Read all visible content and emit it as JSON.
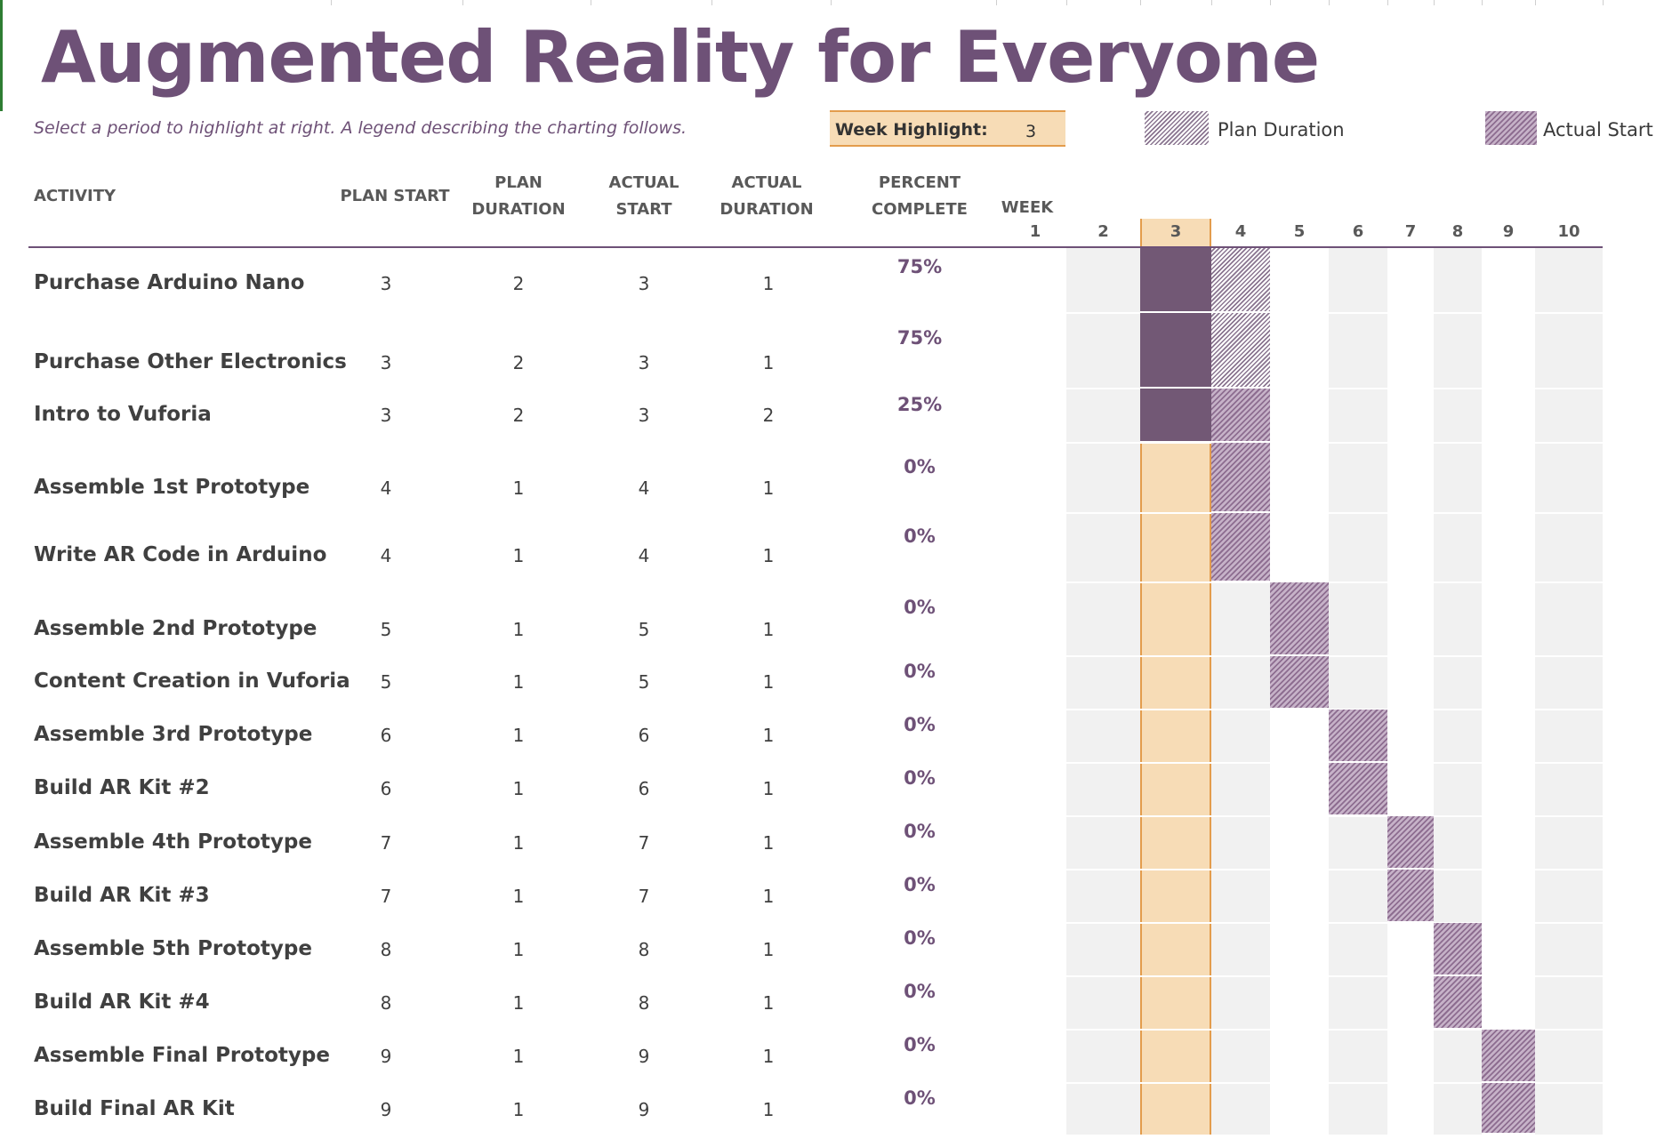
{
  "title": "Augmented Reality for Everyone",
  "subtitle": "Select a period to highlight at right.  A legend describing the charting follows.",
  "week_highlight": {
    "label": "Week Highlight:",
    "value": "3"
  },
  "legend": {
    "plan_label": "Plan Duration",
    "actual_label": "Actual Start"
  },
  "columns": {
    "activity": "ACTIVITY",
    "plan_start": "PLAN START",
    "plan_duration_1": "PLAN",
    "plan_duration_2": "DURATION",
    "actual_start_1": "ACTUAL",
    "actual_start_2": "START",
    "actual_duration_1": "ACTUAL",
    "actual_duration_2": "DURATION",
    "percent_1": "PERCENT",
    "percent_2": "COMPLETE",
    "week": "WEEK"
  },
  "weeks": [
    "1",
    "2",
    "3",
    "4",
    "5",
    "6",
    "7",
    "8",
    "9",
    "10"
  ],
  "highlighted_week": 3,
  "colors": {
    "accent": "#6e5177",
    "highlight": "#f7dcb6",
    "highlight_border": "#e39c4c",
    "actual_complete": "#725875",
    "shade": "#f1f1f1"
  },
  "tasks": [
    {
      "name": "Purchase Arduino Nano",
      "plan_start": "3",
      "plan_duration": "2",
      "actual_start": "3",
      "actual_duration": "1",
      "percent": "75%"
    },
    {
      "name": "Purchase Other Electronics",
      "plan_start": "3",
      "plan_duration": "2",
      "actual_start": "3",
      "actual_duration": "1",
      "percent": "75%"
    },
    {
      "name": "Intro to Vuforia",
      "plan_start": "3",
      "plan_duration": "2",
      "actual_start": "3",
      "actual_duration": "2",
      "percent": "25%"
    },
    {
      "name": "Assemble 1st Prototype",
      "plan_start": "4",
      "plan_duration": "1",
      "actual_start": "4",
      "actual_duration": "1",
      "percent": "0%"
    },
    {
      "name": "Write AR Code in Arduino",
      "plan_start": "4",
      "plan_duration": "1",
      "actual_start": "4",
      "actual_duration": "1",
      "percent": "0%"
    },
    {
      "name": "Assemble 2nd Prototype",
      "plan_start": "5",
      "plan_duration": "1",
      "actual_start": "5",
      "actual_duration": "1",
      "percent": "0%"
    },
    {
      "name": "Content Creation in Vuforia",
      "plan_start": "5",
      "plan_duration": "1",
      "actual_start": "5",
      "actual_duration": "1",
      "percent": "0%"
    },
    {
      "name": "Assemble 3rd Prototype",
      "plan_start": "6",
      "plan_duration": "1",
      "actual_start": "6",
      "actual_duration": "1",
      "percent": "0%"
    },
    {
      "name": "Build AR Kit #2",
      "plan_start": "6",
      "plan_duration": "1",
      "actual_start": "6",
      "actual_duration": "1",
      "percent": "0%"
    },
    {
      "name": "Assemble 4th Prototype",
      "plan_start": "7",
      "plan_duration": "1",
      "actual_start": "7",
      "actual_duration": "1",
      "percent": "0%"
    },
    {
      "name": "Build AR Kit #3",
      "plan_start": "7",
      "plan_duration": "1",
      "actual_start": "7",
      "actual_duration": "1",
      "percent": "0%"
    },
    {
      "name": "Assemble 5th Prototype",
      "plan_start": "8",
      "plan_duration": "1",
      "actual_start": "8",
      "actual_duration": "1",
      "percent": "0%"
    },
    {
      "name": "Build AR Kit #4",
      "plan_start": "8",
      "plan_duration": "1",
      "actual_start": "8",
      "actual_duration": "1",
      "percent": "0%"
    },
    {
      "name": "Assemble Final Prototype",
      "plan_start": "9",
      "plan_duration": "1",
      "actual_start": "9",
      "actual_duration": "1",
      "percent": "0%"
    },
    {
      "name": "Build Final AR Kit",
      "plan_start": "9",
      "plan_duration": "1",
      "actual_start": "9",
      "actual_duration": "1",
      "percent": "0%"
    }
  ]
}
